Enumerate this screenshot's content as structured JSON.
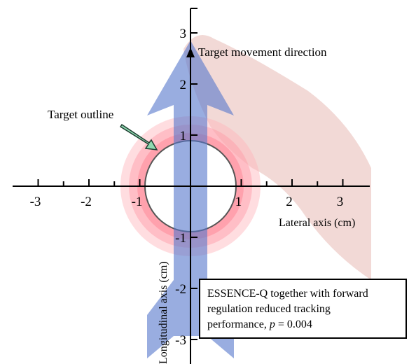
{
  "axes": {
    "x_ticks": [
      -3,
      -2,
      -1,
      1,
      2,
      3
    ],
    "y_ticks": [
      3,
      2,
      1,
      -1,
      -2,
      -3
    ],
    "x_label": "Lateral axis (cm)",
    "y_label": "Longitudinal axis (cm)"
  },
  "annotations": {
    "movement": "Target movement direction",
    "outline": "Target outline"
  },
  "note": {
    "line1": "ESSENCE-Q together with forward",
    "line2": "regulation reduced tracking",
    "line3_start": "performance, ",
    "line3_italic": "p",
    "line3_end": " = 0.004"
  }
}
